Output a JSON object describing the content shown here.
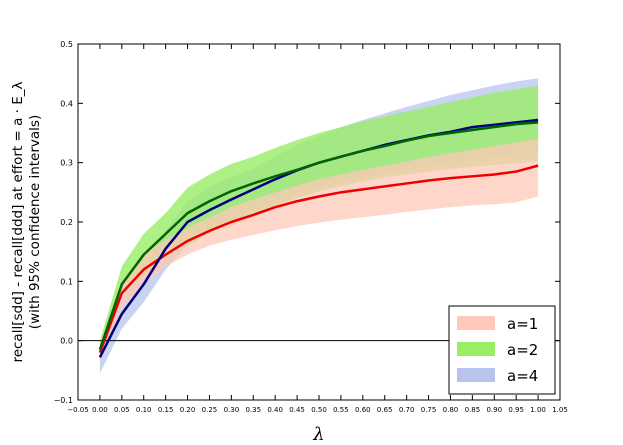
{
  "chart_data": {
    "type": "line",
    "xlabel": "λ",
    "ylabel_lines": [
      "recall[sdd] - recall[ddd] at effort = a · E_λ",
      "(with 95% confidence intervals)"
    ],
    "xlim": [
      -0.05,
      1.05
    ],
    "ylim": [
      -0.1,
      0.5
    ],
    "x_ticks": [
      "−0.05",
      "0.00",
      "0.05",
      "0.10",
      "0.15",
      "0.20",
      "0.25",
      "0.30",
      "0.35",
      "0.40",
      "0.45",
      "0.50",
      "0.55",
      "0.60",
      "0.65",
      "0.70",
      "0.75",
      "0.80",
      "0.85",
      "0.90",
      "0.95",
      "1.00",
      "1.05"
    ],
    "y_ticks": [
      "−0.1",
      "0.0",
      "0.1",
      "0.2",
      "0.3",
      "0.4",
      "0.5"
    ],
    "reference_line_y": 0.0,
    "legend_position": "lower-right",
    "x": [
      0.0,
      0.05,
      0.1,
      0.15,
      0.2,
      0.25,
      0.3,
      0.35,
      0.4,
      0.45,
      0.5,
      0.55,
      0.6,
      0.65,
      0.7,
      0.75,
      0.8,
      0.85,
      0.9,
      0.95,
      1.0
    ],
    "series": [
      {
        "name": "a=1",
        "line_color": "#ee0000",
        "band_color": "#ffc8b8",
        "values": [
          -0.02,
          0.08,
          0.12,
          0.145,
          0.168,
          0.185,
          0.2,
          0.212,
          0.225,
          0.235,
          0.243,
          0.25,
          0.255,
          0.26,
          0.265,
          0.27,
          0.274,
          0.277,
          0.28,
          0.285,
          0.295
        ],
        "lower": [
          -0.035,
          0.055,
          0.095,
          0.125,
          0.145,
          0.16,
          0.17,
          0.178,
          0.186,
          0.193,
          0.199,
          0.204,
          0.208,
          0.212,
          0.217,
          0.221,
          0.225,
          0.228,
          0.23,
          0.233,
          0.243
        ],
        "upper": [
          -0.005,
          0.1,
          0.145,
          0.17,
          0.19,
          0.208,
          0.225,
          0.238,
          0.25,
          0.262,
          0.272,
          0.28,
          0.288,
          0.295,
          0.302,
          0.31,
          0.316,
          0.322,
          0.328,
          0.334,
          0.34
        ]
      },
      {
        "name": "a=2",
        "line_color": "#006400",
        "band_color": "#99ee66",
        "values": [
          -0.015,
          0.095,
          0.145,
          0.18,
          0.215,
          0.235,
          0.252,
          0.265,
          0.277,
          0.288,
          0.3,
          0.31,
          0.32,
          0.328,
          0.337,
          0.345,
          0.35,
          0.355,
          0.36,
          0.365,
          0.368
        ],
        "lower": [
          -0.03,
          0.075,
          0.11,
          0.14,
          0.16,
          0.18,
          0.2,
          0.215,
          0.228,
          0.24,
          0.252,
          0.26,
          0.268,
          0.275,
          0.28,
          0.285,
          0.29,
          0.293,
          0.296,
          0.299,
          0.302
        ],
        "upper": [
          0.0,
          0.125,
          0.18,
          0.215,
          0.258,
          0.28,
          0.298,
          0.31,
          0.325,
          0.338,
          0.35,
          0.36,
          0.37,
          0.378,
          0.386,
          0.394,
          0.402,
          0.41,
          0.418,
          0.424,
          0.43
        ]
      },
      {
        "name": "a=4",
        "line_color": "#00007a",
        "band_color": "#b8c4ee",
        "values": [
          -0.028,
          0.045,
          0.095,
          0.155,
          0.2,
          0.22,
          0.238,
          0.255,
          0.272,
          0.287,
          0.3,
          0.31,
          0.32,
          0.33,
          0.338,
          0.346,
          0.352,
          0.36,
          0.364,
          0.368,
          0.372
        ],
        "lower": [
          -0.055,
          0.02,
          0.065,
          0.12,
          0.16,
          0.185,
          0.205,
          0.22,
          0.235,
          0.248,
          0.258,
          0.266,
          0.274,
          0.282,
          0.288,
          0.294,
          0.3,
          0.305,
          0.31,
          0.314,
          0.318
        ],
        "upper": [
          -0.005,
          0.07,
          0.12,
          0.185,
          0.235,
          0.26,
          0.275,
          0.29,
          0.31,
          0.33,
          0.345,
          0.36,
          0.372,
          0.383,
          0.394,
          0.404,
          0.414,
          0.422,
          0.43,
          0.437,
          0.442
        ]
      }
    ]
  }
}
